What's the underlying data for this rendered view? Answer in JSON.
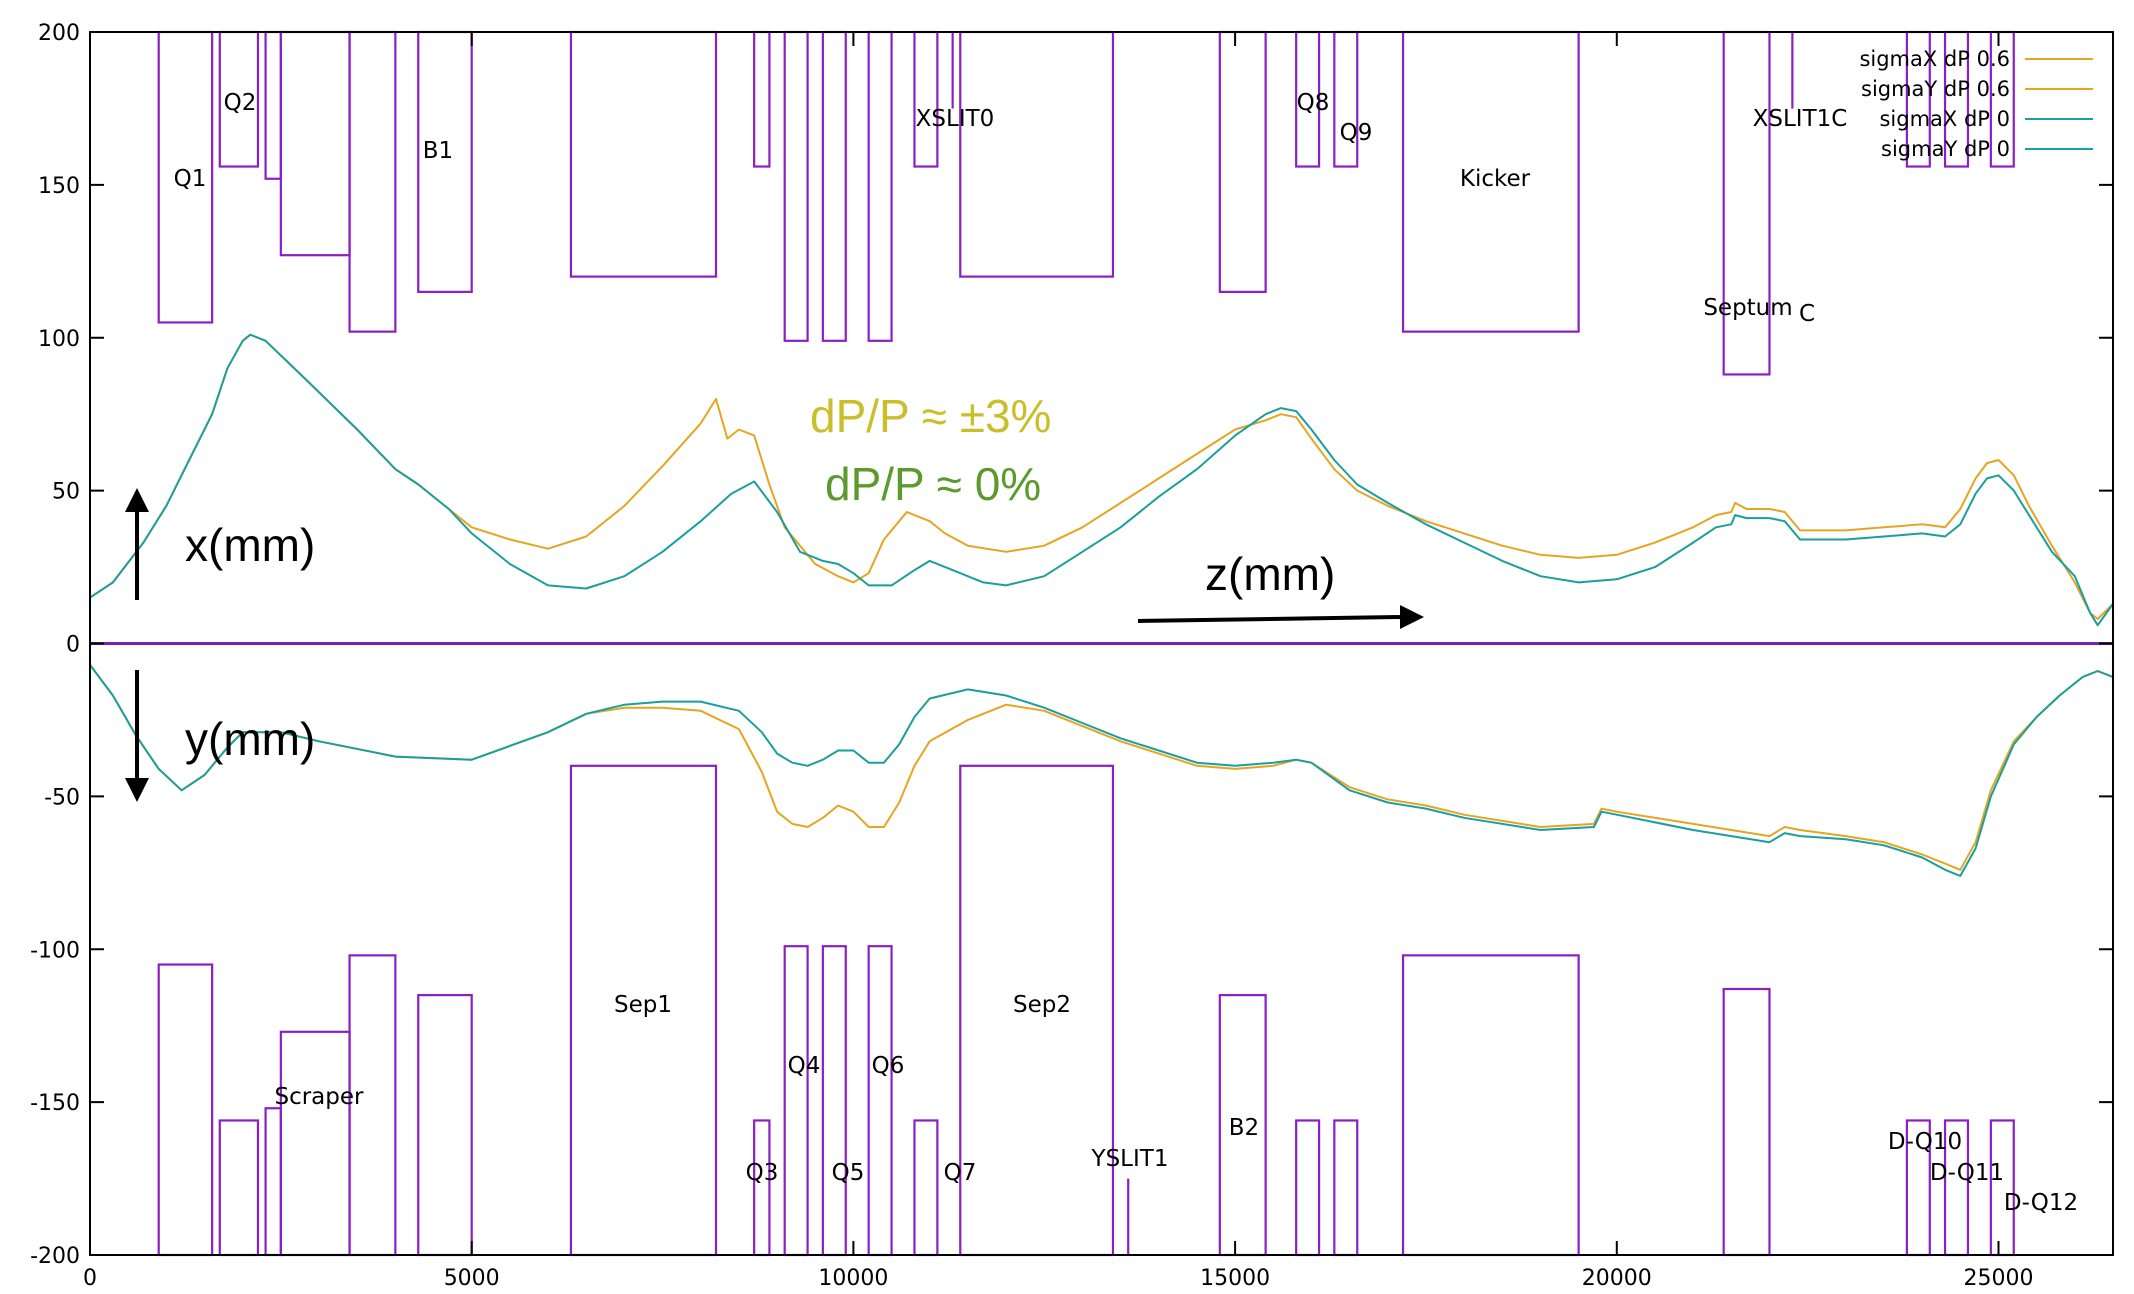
{
  "chart_data": {
    "type": "line",
    "title": "",
    "xlabel": "",
    "ylabel": "",
    "xlim": [
      0,
      26500
    ],
    "ylim": [
      -200,
      200
    ],
    "x_ticks": [
      0,
      5000,
      10000,
      15000,
      20000,
      25000
    ],
    "y_ticks": [
      200,
      150,
      100,
      50,
      0,
      -50,
      -100,
      -150,
      -200
    ],
    "grid": false,
    "legend_position": "top-right",
    "series": [
      {
        "name": "sigmaX dP 0.6",
        "color": "#e6a520",
        "x": [
          0,
          300,
          700,
          1000,
          1300,
          1600,
          1800,
          2000,
          2100,
          2300,
          2800,
          3500,
          4000,
          4300,
          4700,
          5000,
          5500,
          6000,
          6500,
          7000,
          7500,
          8000,
          8200,
          8350,
          8500,
          8700,
          8900,
          9100,
          9300,
          9500,
          9800,
          10000,
          10200,
          10400,
          10700,
          11000,
          11200,
          11500,
          12000,
          12500,
          13000,
          13500,
          14000,
          14500,
          15000,
          15400,
          15600,
          15800,
          16000,
          16300,
          16600,
          17000,
          17500,
          18000,
          18500,
          19000,
          19500,
          20000,
          20500,
          21000,
          21300,
          21500,
          21550,
          21700,
          22000,
          22200,
          22400,
          23000,
          23500,
          24000,
          24300,
          24500,
          24700,
          24850,
          25000,
          25200,
          25400,
          25700,
          26000,
          26200,
          26300,
          26500
        ],
        "y": [
          15,
          20,
          33,
          45,
          60,
          75,
          90,
          99,
          101,
          99,
          87,
          70,
          57,
          52,
          44,
          38,
          34,
          31,
          35,
          45,
          58,
          72,
          80,
          67,
          70,
          68,
          52,
          38,
          32,
          26,
          22,
          20,
          23,
          34,
          43,
          40,
          36,
          32,
          30,
          32,
          38,
          46,
          54,
          62,
          70,
          73,
          75,
          74,
          67,
          57,
          50,
          45,
          40,
          36,
          32,
          29,
          28,
          29,
          33,
          38,
          42,
          43,
          46,
          44,
          44,
          43,
          37,
          37,
          38,
          39,
          38,
          44,
          54,
          59,
          60,
          55,
          45,
          32,
          20,
          10,
          8,
          13
        ]
      },
      {
        "name": "sigmaY dP 0.6",
        "color": "#e6a520",
        "x": [
          0,
          300,
          600,
          900,
          1200,
          1500,
          1800,
          2000,
          2500,
          3000,
          4000,
          5000,
          6000,
          6500,
          7000,
          7500,
          8000,
          8500,
          8800,
          9000,
          9200,
          9400,
          9600,
          9800,
          10000,
          10200,
          10400,
          10600,
          10800,
          11000,
          11500,
          12000,
          12500,
          13000,
          13500,
          14000,
          14500,
          15000,
          15500,
          15800,
          16000,
          16500,
          17000,
          17500,
          18000,
          19000,
          19700,
          19800,
          20000,
          21000,
          22000,
          22200,
          22400,
          23000,
          23500,
          24000,
          24300,
          24500,
          24700,
          24900,
          25200,
          25500,
          25800,
          26100,
          26300,
          26500
        ],
        "y": [
          -7,
          -17,
          -30,
          -41,
          -48,
          -43,
          -34,
          -29,
          -29,
          -32,
          -37,
          -38,
          -29,
          -23,
          -21,
          -21,
          -22,
          -28,
          -42,
          -55,
          -59,
          -60,
          -57,
          -53,
          -55,
          -60,
          -60,
          -52,
          -40,
          -32,
          -25,
          -20,
          -22,
          -27,
          -32,
          -36,
          -40,
          -41,
          -40,
          -38,
          -39,
          -47,
          -51,
          -53,
          -56,
          -60,
          -59,
          -54,
          -55,
          -59,
          -63,
          -60,
          -61,
          -63,
          -65,
          -69,
          -72,
          -74,
          -65,
          -48,
          -32,
          -24,
          -17,
          -11,
          -9,
          -11
        ]
      },
      {
        "name": "sigmaX dP 0",
        "color": "#1a9e9e",
        "x": [
          0,
          300,
          700,
          1000,
          1300,
          1600,
          1800,
          2000,
          2100,
          2300,
          2800,
          3500,
          4000,
          4300,
          4700,
          5000,
          5500,
          6000,
          6500,
          7000,
          7500,
          8000,
          8400,
          8700,
          9000,
          9300,
          9600,
          9800,
          10000,
          10200,
          10500,
          10800,
          11000,
          11300,
          11700,
          12000,
          12500,
          13000,
          13500,
          14000,
          14500,
          15000,
          15400,
          15600,
          15800,
          16000,
          16300,
          16600,
          17000,
          17500,
          18000,
          18500,
          19000,
          19500,
          20000,
          20500,
          21000,
          21300,
          21500,
          21550,
          21700,
          22000,
          22200,
          22400,
          23000,
          23500,
          24000,
          24300,
          24500,
          24700,
          24850,
          25000,
          25200,
          25400,
          25700,
          26000,
          26200,
          26300,
          26500
        ],
        "y": [
          15,
          20,
          33,
          45,
          60,
          75,
          90,
          99,
          101,
          99,
          87,
          70,
          57,
          52,
          44,
          36,
          26,
          19,
          18,
          22,
          30,
          40,
          49,
          53,
          43,
          30,
          27,
          26,
          23,
          19,
          19,
          24,
          27,
          24,
          20,
          19,
          22,
          30,
          38,
          48,
          57,
          68,
          75,
          77,
          76,
          70,
          60,
          52,
          46,
          39,
          33,
          27,
          22,
          20,
          21,
          25,
          33,
          38,
          39,
          42,
          41,
          41,
          40,
          34,
          34,
          35,
          36,
          35,
          39,
          49,
          54,
          55,
          50,
          42,
          30,
          22,
          10,
          6,
          13
        ]
      },
      {
        "name": "sigmaY dP 0",
        "color": "#1a9e9e",
        "x": [
          0,
          300,
          600,
          900,
          1200,
          1500,
          1800,
          2000,
          2500,
          3000,
          4000,
          5000,
          6000,
          6500,
          7000,
          7500,
          8000,
          8500,
          8800,
          9000,
          9200,
          9400,
          9600,
          9800,
          10000,
          10200,
          10400,
          10600,
          10800,
          11000,
          11500,
          12000,
          12500,
          13000,
          13500,
          14000,
          14500,
          15000,
          15500,
          15800,
          16000,
          16500,
          17000,
          17500,
          18000,
          19000,
          19700,
          19800,
          20000,
          21000,
          22000,
          22200,
          22400,
          23000,
          23500,
          24000,
          24300,
          24500,
          24700,
          24900,
          25200,
          25500,
          25800,
          26100,
          26300,
          26500
        ],
        "y": [
          -7,
          -17,
          -30,
          -41,
          -48,
          -43,
          -34,
          -29,
          -29,
          -32,
          -37,
          -38,
          -29,
          -23,
          -20,
          -19,
          -19,
          -22,
          -29,
          -36,
          -39,
          -40,
          -38,
          -35,
          -35,
          -39,
          -39,
          -33,
          -24,
          -18,
          -15,
          -17,
          -21,
          -26,
          -31,
          -35,
          -39,
          -40,
          -39,
          -38,
          -39,
          -48,
          -52,
          -54,
          -57,
          -61,
          -60,
          -55,
          -56,
          -61,
          -65,
          -62,
          -63,
          -64,
          -66,
          -70,
          -74,
          -76,
          -67,
          -50,
          -33,
          -24,
          -17,
          -11,
          -9,
          -11
        ]
      }
    ],
    "elements": [
      {
        "name": "Q1",
        "z": [
          900,
          1600
        ],
        "x_ap": 105,
        "y_ap": 105
      },
      {
        "name": "Q2",
        "z": [
          1700,
          2200
        ],
        "x_ap": 156,
        "y_ap": 156
      },
      {
        "name": "Scraper",
        "z": [
          2300,
          2500
        ],
        "x_ap": 152,
        "y_ap": 152
      },
      {
        "name": "",
        "z": [
          2500,
          3400
        ],
        "x_ap": 127,
        "y_ap": 127
      },
      {
        "name": "",
        "z": [
          3400,
          4000
        ],
        "x_ap": 102,
        "y_ap": 102
      },
      {
        "name": "B1",
        "z": [
          4300,
          5000
        ],
        "x_ap": 115,
        "y_ap": 115
      },
      {
        "name": "Sep1",
        "z": [
          6300,
          8200
        ],
        "x_ap": 120,
        "y_ap": 40
      },
      {
        "name": "Q3",
        "z": [
          8700,
          8900
        ],
        "x_ap": 156,
        "y_ap": 156
      },
      {
        "name": "Q4",
        "z": [
          9100,
          9400
        ],
        "x_ap": 99,
        "y_ap": 99
      },
      {
        "name": "Q5",
        "z": [
          9600,
          9900
        ],
        "x_ap": 99,
        "y_ap": 99
      },
      {
        "name": "Q6",
        "z": [
          10200,
          10500
        ],
        "x_ap": 99,
        "y_ap": 99
      },
      {
        "name": "Q7",
        "z": [
          10800,
          11100
        ],
        "x_ap": 156,
        "y_ap": 156
      },
      {
        "name": "Sep2",
        "z": [
          11400,
          13400
        ],
        "x_ap": 120,
        "y_ap": 40
      },
      {
        "name": "B2",
        "z": [
          14800,
          15400
        ],
        "x_ap": 115,
        "y_ap": 115
      },
      {
        "name": "Q8",
        "z": [
          15800,
          16100
        ],
        "x_ap": 156,
        "y_ap": 156
      },
      {
        "name": "Q9",
        "z": [
          16300,
          16600
        ],
        "x_ap": 156,
        "y_ap": 156
      },
      {
        "name": "Kicker",
        "z": [
          17200,
          19500
        ],
        "x_ap": 102,
        "y_ap": 102
      },
      {
        "name": "Septum",
        "z": [
          21400,
          22000
        ],
        "x_ap": 88,
        "y_ap": 113
      },
      {
        "name": "D-Q10",
        "z": [
          23800,
          24100
        ],
        "x_ap": 156,
        "y_ap": 156
      },
      {
        "name": "D-Q11",
        "z": [
          24300,
          24600
        ],
        "x_ap": 156,
        "y_ap": 156
      },
      {
        "name": "D-Q12",
        "z": [
          24900,
          25200
        ],
        "x_ap": 156,
        "y_ap": 156
      }
    ],
    "slits": [
      {
        "name": "XSLIT0",
        "z": 11300,
        "plane": "x",
        "ap": 175
      },
      {
        "name": "XSLIT1C",
        "z": 22300,
        "plane": "x",
        "ap": 175
      },
      {
        "name": "YSLIT1",
        "z": 13600,
        "plane": "y",
        "ap": 175
      }
    ],
    "element_labels": {
      "Q1": "Q1",
      "Q2": "Q2",
      "B1": "B1",
      "XSLIT0": "XSLIT0",
      "Q8": "Q8",
      "Q9": "Q9",
      "Kicker": "Kicker",
      "XSLIT1C": "XSLIT1C",
      "Septum": "Septum",
      "Septum_sub": "C",
      "Scraper": "Scraper",
      "Sep1": "Sep1",
      "Sep2": "Sep2",
      "Q3": "Q3",
      "Q4": "Q4",
      "Q5": "Q5",
      "Q6": "Q6",
      "Q7": "Q7",
      "YSLIT1": "YSLIT1",
      "B2": "B2",
      "D-Q10": "D-Q10",
      "D-Q11": "D-Q11",
      "D-Q12": "D-Q12"
    },
    "annotations": {
      "dp3": "dP/P ≈ ±3%",
      "dp0": "dP/P ≈ 0%",
      "x_axis": "x(mm)",
      "y_axis": "y(mm)",
      "z_axis": "z(mm)"
    },
    "colors": {
      "magnet_outline": "#8b1fc4",
      "axis_line": "#7a1fb8",
      "dp3_text": "#c9bf2a",
      "dp0_text": "#5c9a2e",
      "dp06": "#e6a520",
      "dp0": "#1a9e9e"
    }
  }
}
